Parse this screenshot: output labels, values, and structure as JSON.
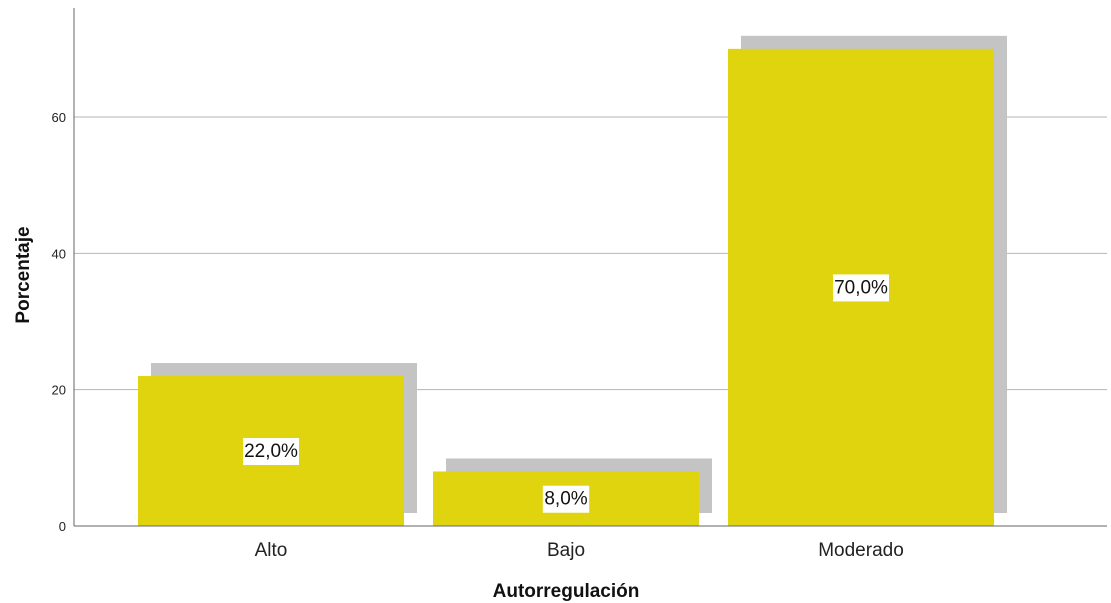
{
  "chart_data": {
    "type": "bar",
    "categories": [
      "Alto",
      "Bajo",
      "Moderado"
    ],
    "values": [
      22.0,
      8.0,
      70.0
    ],
    "data_labels": [
      "22,0%",
      "8,0%",
      "70,0%"
    ],
    "xlabel": "Autorregulación",
    "ylabel": "Porcentaje",
    "ylim": [
      0,
      75
    ],
    "yticks": [
      0,
      20,
      40,
      60
    ],
    "grid": true,
    "colors": {
      "bar": "#e0d40f",
      "shadow": "#c4c4c4",
      "grid": "#b5b5b5",
      "axis": "#666666"
    }
  }
}
